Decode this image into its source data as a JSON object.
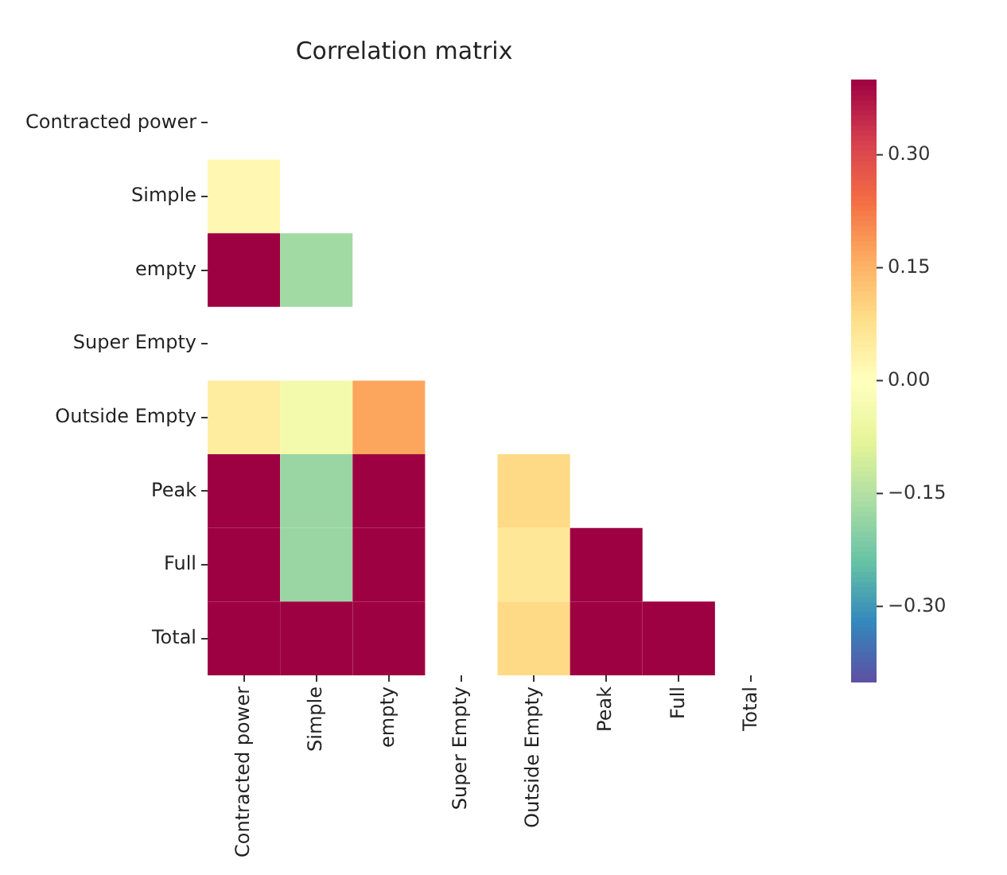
{
  "chart_data": {
    "type": "heatmap",
    "title": "Correlation matrix",
    "categories": [
      "Contracted power",
      "Simple",
      "empty",
      "Super Empty",
      "Outside Empty",
      "Peak",
      "Full",
      "Total"
    ],
    "y_categories": [
      "Contracted power",
      "Simple",
      "empty",
      "Super Empty",
      "Outside Empty",
      "Peak",
      "Full",
      "Total"
    ],
    "cells": [
      [
        null,
        null,
        null,
        null,
        null,
        null,
        null,
        null
      ],
      [
        0.02,
        null,
        null,
        null,
        null,
        null,
        null,
        null
      ],
      [
        0.4,
        -0.17,
        null,
        null,
        null,
        null,
        null,
        null
      ],
      [
        null,
        null,
        null,
        null,
        null,
        null,
        null,
        null
      ],
      [
        0.05,
        -0.04,
        0.17,
        null,
        null,
        null,
        null,
        null
      ],
      [
        0.4,
        -0.18,
        0.4,
        null,
        0.09,
        null,
        null,
        null
      ],
      [
        0.4,
        -0.18,
        0.4,
        null,
        0.06,
        0.4,
        null,
        null
      ],
      [
        0.4,
        0.4,
        0.4,
        null,
        0.09,
        0.4,
        0.4,
        null
      ]
    ],
    "clim": [
      -0.4,
      0.4
    ],
    "cticks": [
      {
        "value": 0.3,
        "label": "0.30"
      },
      {
        "value": 0.15,
        "label": "0.15"
      },
      {
        "value": 0,
        "label": "0.00"
      },
      {
        "value": -0.15,
        "label": "−0.15"
      },
      {
        "value": -0.3,
        "label": "−0.30"
      }
    ]
  }
}
